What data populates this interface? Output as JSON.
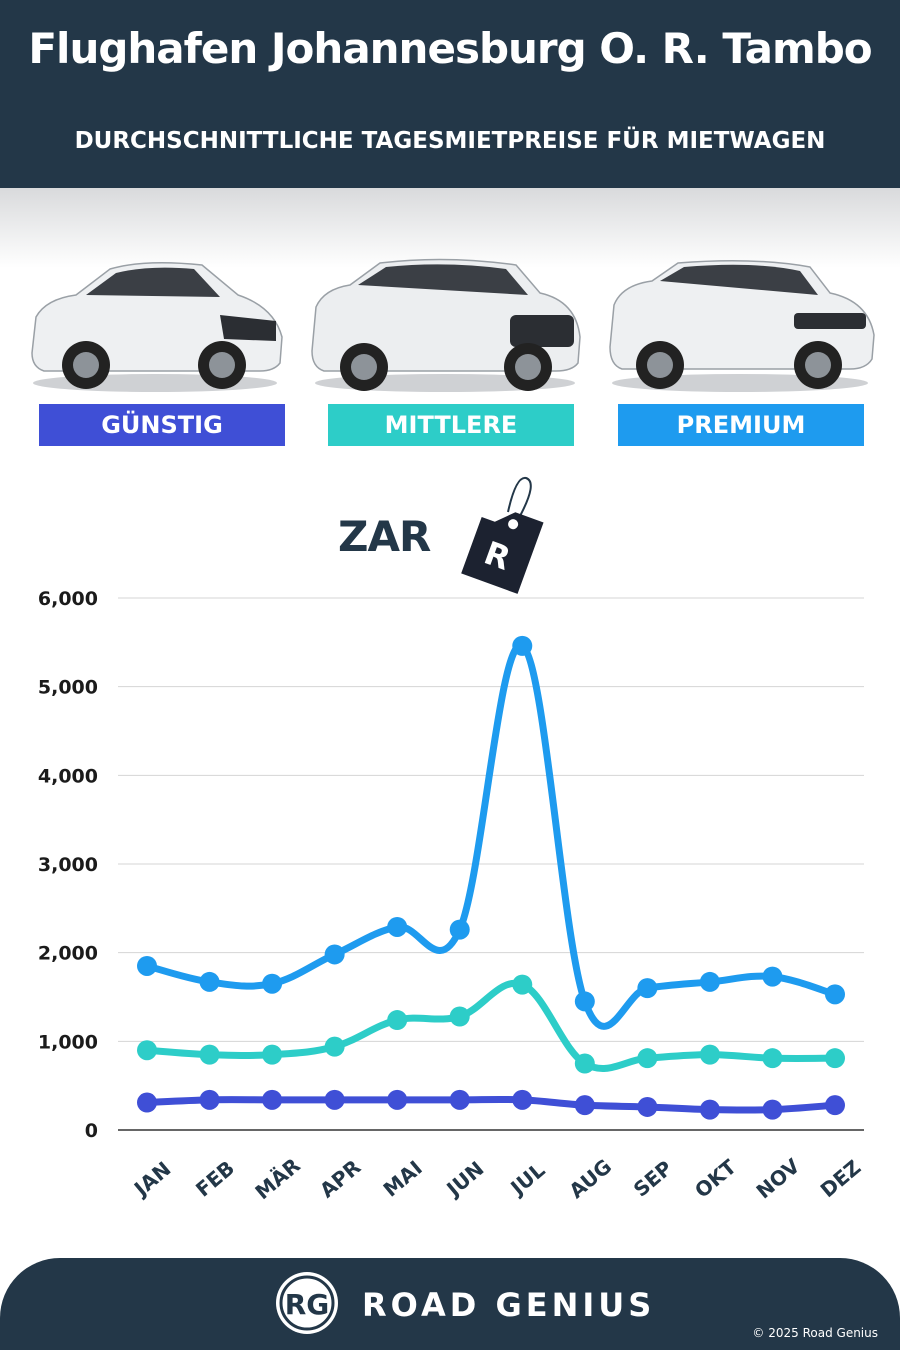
{
  "header": {
    "title": "Flughafen Johannesburg O. R. Tambo",
    "subtitle": "DURCHSCHNITTLICHE TAGESMIETPREISE FÜR MIETWAGEN"
  },
  "categories": [
    {
      "label": "GÜNSTIG",
      "color": "#3f4fd6"
    },
    {
      "label": "MITTLERE",
      "color": "#2dcdc8"
    },
    {
      "label": "PREMIUM",
      "color": "#1e9bef"
    }
  ],
  "unit": {
    "label": "ZAR",
    "tag": "R"
  },
  "chart_data": {
    "type": "line",
    "categories": [
      "JAN",
      "FEB",
      "MÄR",
      "APR",
      "MAI",
      "JUN",
      "JUL",
      "AUG",
      "SEP",
      "OKT",
      "NOV",
      "DEZ"
    ],
    "series": [
      {
        "name": "PREMIUM",
        "color": "#1e9bef",
        "values": [
          1850,
          1670,
          1650,
          1980,
          2290,
          2260,
          5460,
          1450,
          1600,
          1670,
          1730,
          1530
        ]
      },
      {
        "name": "MITTLERE",
        "color": "#2dcdc8",
        "values": [
          900,
          850,
          850,
          940,
          1240,
          1280,
          1640,
          750,
          810,
          850,
          810,
          810
        ]
      },
      {
        "name": "GÜNSTIG",
        "color": "#3f4fd6",
        "values": [
          310,
          340,
          340,
          340,
          340,
          340,
          340,
          280,
          260,
          230,
          230,
          280
        ]
      }
    ],
    "yticks": [
      "0",
      "1,000",
      "2,000",
      "3,000",
      "4,000",
      "5,000",
      "6,000"
    ],
    "ylim": [
      0,
      6000
    ],
    "grid": true
  },
  "footer": {
    "logo_text": "RG",
    "brand": "ROAD GENIUS",
    "copyright": "© 2025 Road Genius"
  }
}
